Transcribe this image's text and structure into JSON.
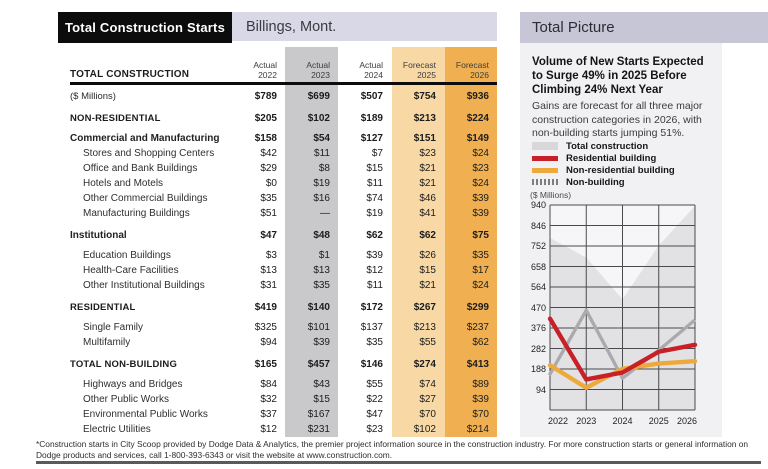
{
  "masthead": {
    "title": "Total Construction Starts",
    "location": "Billings, Mont."
  },
  "table": {
    "section_label": "TOTAL CONSTRUCTION",
    "col_headers": [
      {
        "line1": "Actual",
        "line2": "2022"
      },
      {
        "line1": "Actual",
        "line2": "2023"
      },
      {
        "line1": "Actual",
        "line2": "2024"
      },
      {
        "line1": "Forecast",
        "line2": "2025"
      },
      {
        "line1": "Forecast",
        "line2": "2026"
      }
    ],
    "column_bands": [
      {
        "col": "2023",
        "color": "#c9c9cc"
      },
      {
        "col": "2025",
        "color": "#f8d9a6"
      },
      {
        "col": "2026",
        "color": "#f0b052"
      }
    ],
    "rows": [
      {
        "label": "($ Millions)",
        "style": "unit",
        "gap": null,
        "values": [
          "$789",
          "$699",
          "$507",
          "$754",
          "$936"
        ]
      },
      {
        "label": "NON-RESIDENTIAL",
        "style": "total",
        "gap": "lg",
        "values": [
          "$205",
          "$102",
          "$189",
          "$213",
          "$224"
        ]
      },
      {
        "label": "Commercial and Manufacturing",
        "style": "group",
        "gap": "sm",
        "values": [
          "$158",
          "$54",
          "$127",
          "$151",
          "$149"
        ]
      },
      {
        "label": "Stores and Shopping Centers",
        "style": "item",
        "gap": null,
        "values": [
          "$42",
          "$11",
          "$7",
          "$23",
          "$24"
        ]
      },
      {
        "label": "Office and Bank Buildings",
        "style": "item",
        "gap": null,
        "values": [
          "$29",
          "$8",
          "$15",
          "$21",
          "$23"
        ]
      },
      {
        "label": "Hotels and Motels",
        "style": "item",
        "gap": null,
        "values": [
          "$0",
          "$19",
          "$11",
          "$21",
          "$24"
        ]
      },
      {
        "label": "Other Commercial Buildings",
        "style": "item",
        "gap": null,
        "values": [
          "$35",
          "$16",
          "$74",
          "$46",
          "$39"
        ]
      },
      {
        "label": "Manufacturing Buildings",
        "style": "item",
        "gap": null,
        "values": [
          "$51",
          "—",
          "$19",
          "$41",
          "$39"
        ]
      },
      {
        "label": "Institutional",
        "style": "group",
        "gap": "lg",
        "values": [
          "$47",
          "$48",
          "$62",
          "$62",
          "$75"
        ]
      },
      {
        "label": "Education Buildings",
        "style": "item",
        "gap": "sm",
        "values": [
          "$3",
          "$1",
          "$39",
          "$26",
          "$35"
        ]
      },
      {
        "label": "Health-Care Facilities",
        "style": "item",
        "gap": null,
        "values": [
          "$13",
          "$13",
          "$12",
          "$15",
          "$17"
        ]
      },
      {
        "label": "Other Institutional Buildings",
        "style": "item",
        "gap": null,
        "values": [
          "$31",
          "$35",
          "$11",
          "$21",
          "$24"
        ]
      },
      {
        "label": "RESIDENTIAL",
        "style": "total",
        "gap": "lg",
        "values": [
          "$419",
          "$140",
          "$172",
          "$267",
          "$299"
        ]
      },
      {
        "label": "Single Family",
        "style": "item",
        "gap": "sm",
        "values": [
          "$325",
          "$101",
          "$137",
          "$213",
          "$237"
        ]
      },
      {
        "label": "Multifamily",
        "style": "item",
        "gap": null,
        "values": [
          "$94",
          "$39",
          "$35",
          "$55",
          "$62"
        ]
      },
      {
        "label": "TOTAL NON-BUILDING",
        "style": "total",
        "gap": "lg",
        "values": [
          "$165",
          "$457",
          "$146",
          "$274",
          "$413"
        ]
      },
      {
        "label": "Highways and Bridges",
        "style": "item",
        "gap": "sm",
        "values": [
          "$84",
          "$43",
          "$55",
          "$74",
          "$89"
        ]
      },
      {
        "label": "Other Public Works",
        "style": "item",
        "gap": null,
        "values": [
          "$32",
          "$15",
          "$22",
          "$27",
          "$39"
        ]
      },
      {
        "label": "Environmental Public Works",
        "style": "item",
        "gap": null,
        "values": [
          "$37",
          "$167",
          "$47",
          "$70",
          "$70"
        ]
      },
      {
        "label": "Electric Utilities",
        "style": "item",
        "gap": null,
        "values": [
          "$12",
          "$231",
          "$23",
          "$102",
          "$214"
        ]
      }
    ]
  },
  "right_panel": {
    "title": "Total Picture",
    "headline_lines": [
      "Volume of New Starts Expected",
      "to Surge 49% in 2025 Before",
      "Climbing 24% Next Year"
    ],
    "body_lines": [
      "Gains are forecast for all three major",
      "construction categories in 2026, with",
      "non-building starts jumping 51%."
    ],
    "legend": [
      {
        "label": "Total construction",
        "swatch": "total",
        "color": "#d8d8da"
      },
      {
        "label": "Residential building",
        "swatch": "residential",
        "color": "#c72127"
      },
      {
        "label": "Non-residential building",
        "swatch": "non-residential",
        "color": "#eda93c"
      },
      {
        "label": "Non-building",
        "swatch": "non-building",
        "color": "#7e7e82"
      }
    ],
    "unit_label": "($ Millions)"
  },
  "chart_data": {
    "type": "line",
    "x": [
      "2022",
      "2023",
      "2024",
      "2025",
      "2026"
    ],
    "series": [
      {
        "name": "Total construction",
        "style": "area",
        "color": "#e2e2e4",
        "values": [
          789,
          699,
          507,
          754,
          936
        ]
      },
      {
        "name": "Non-building",
        "style": "line-dashed",
        "color": "#aaaaae",
        "values": [
          165,
          457,
          146,
          274,
          413
        ]
      },
      {
        "name": "Non-residential building",
        "style": "line",
        "color": "#eda93c",
        "values": [
          205,
          102,
          189,
          213,
          224
        ]
      },
      {
        "name": "Residential building",
        "style": "line",
        "color": "#c72127",
        "values": [
          419,
          140,
          172,
          267,
          299
        ]
      }
    ],
    "ylabel": "($ Millions)",
    "ylim": [
      0,
      940
    ],
    "yticks": [
      940,
      846,
      752,
      658,
      564,
      470,
      376,
      282,
      188,
      94
    ],
    "grid": true,
    "legend_position": "above-left"
  },
  "footnote_lines": [
    "*Construction starts in City Scoop provided by Dodge Data & Analytics, the premier project information source in the construction industry. For more construction starts or general information on",
    "Dodge products and services, call 1-800-393-6343 or visit the website at www.construction.com."
  ],
  "colors": {
    "masthead_black": "#0c0c0c",
    "lavender_bar": "#d9d8e7",
    "panel_lavender": "#c7c6d7",
    "panel_card": "#f1f1f3",
    "plot_background": "#f6f6f8",
    "grid_line": "#4a4a4e"
  }
}
